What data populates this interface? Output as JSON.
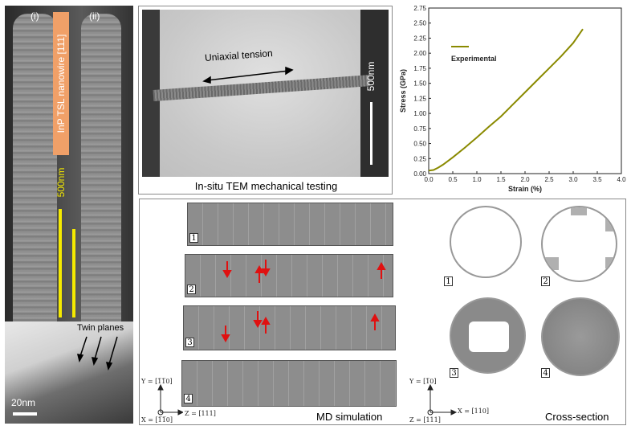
{
  "panel_a": {
    "label_i": "(i)",
    "label_ii": "(ii)",
    "wire_title": "InP TSL nanowire [111]",
    "scale_500": "500nm",
    "twin_label": "Twin planes",
    "scale_20": "20nm",
    "colors": {
      "title_bg": "#f0a068",
      "scale_bar": "#f5ea00"
    }
  },
  "panel_b": {
    "tension_label": "Uniaxial tension",
    "scale_label": "500nm",
    "caption": "In-situ TEM mechanical testing"
  },
  "chart_data": {
    "type": "line",
    "xlabel": "Strain (%)",
    "ylabel": "Stress (GPa)",
    "xlim": [
      0,
      4.0
    ],
    "ylim": [
      0,
      2.75
    ],
    "x_ticks": [
      "0.0",
      "0.5",
      "1.0",
      "1.5",
      "2.0",
      "2.5",
      "3.0",
      "3.5",
      "4.0"
    ],
    "y_ticks": [
      "0.00",
      "0.25",
      "0.50",
      "0.75",
      "1.00",
      "1.25",
      "1.50",
      "1.75",
      "2.00",
      "2.25",
      "2.50",
      "2.75"
    ],
    "legend_placement": "top-left",
    "series": [
      {
        "name": "Experimental",
        "color": "#8a8a00",
        "x": [
          0.0,
          0.1,
          0.2,
          0.3,
          0.5,
          0.75,
          1.0,
          1.25,
          1.5,
          1.75,
          2.0,
          2.25,
          2.5,
          2.75,
          3.0,
          3.2
        ],
        "y": [
          0.05,
          0.06,
          0.1,
          0.15,
          0.27,
          0.43,
          0.6,
          0.78,
          0.95,
          1.15,
          1.35,
          1.55,
          1.75,
          1.95,
          2.17,
          2.4
        ]
      }
    ]
  },
  "panel_md": {
    "numbers": [
      "1",
      "2",
      "3",
      "4"
    ],
    "axis_y": "Y = [1̅1̅0]",
    "axis_x": "X = [1̅1̅0]",
    "axis_z": "Z = [111]",
    "caption": "MD simulation",
    "arrow_color": "#e01010"
  },
  "panel_cs": {
    "numbers": [
      "1",
      "2",
      "3",
      "4"
    ],
    "axis_y": "Y = [1̅0]",
    "axis_x": "X = [110]",
    "axis_z": "Z = [111]",
    "caption": "Cross-section"
  }
}
